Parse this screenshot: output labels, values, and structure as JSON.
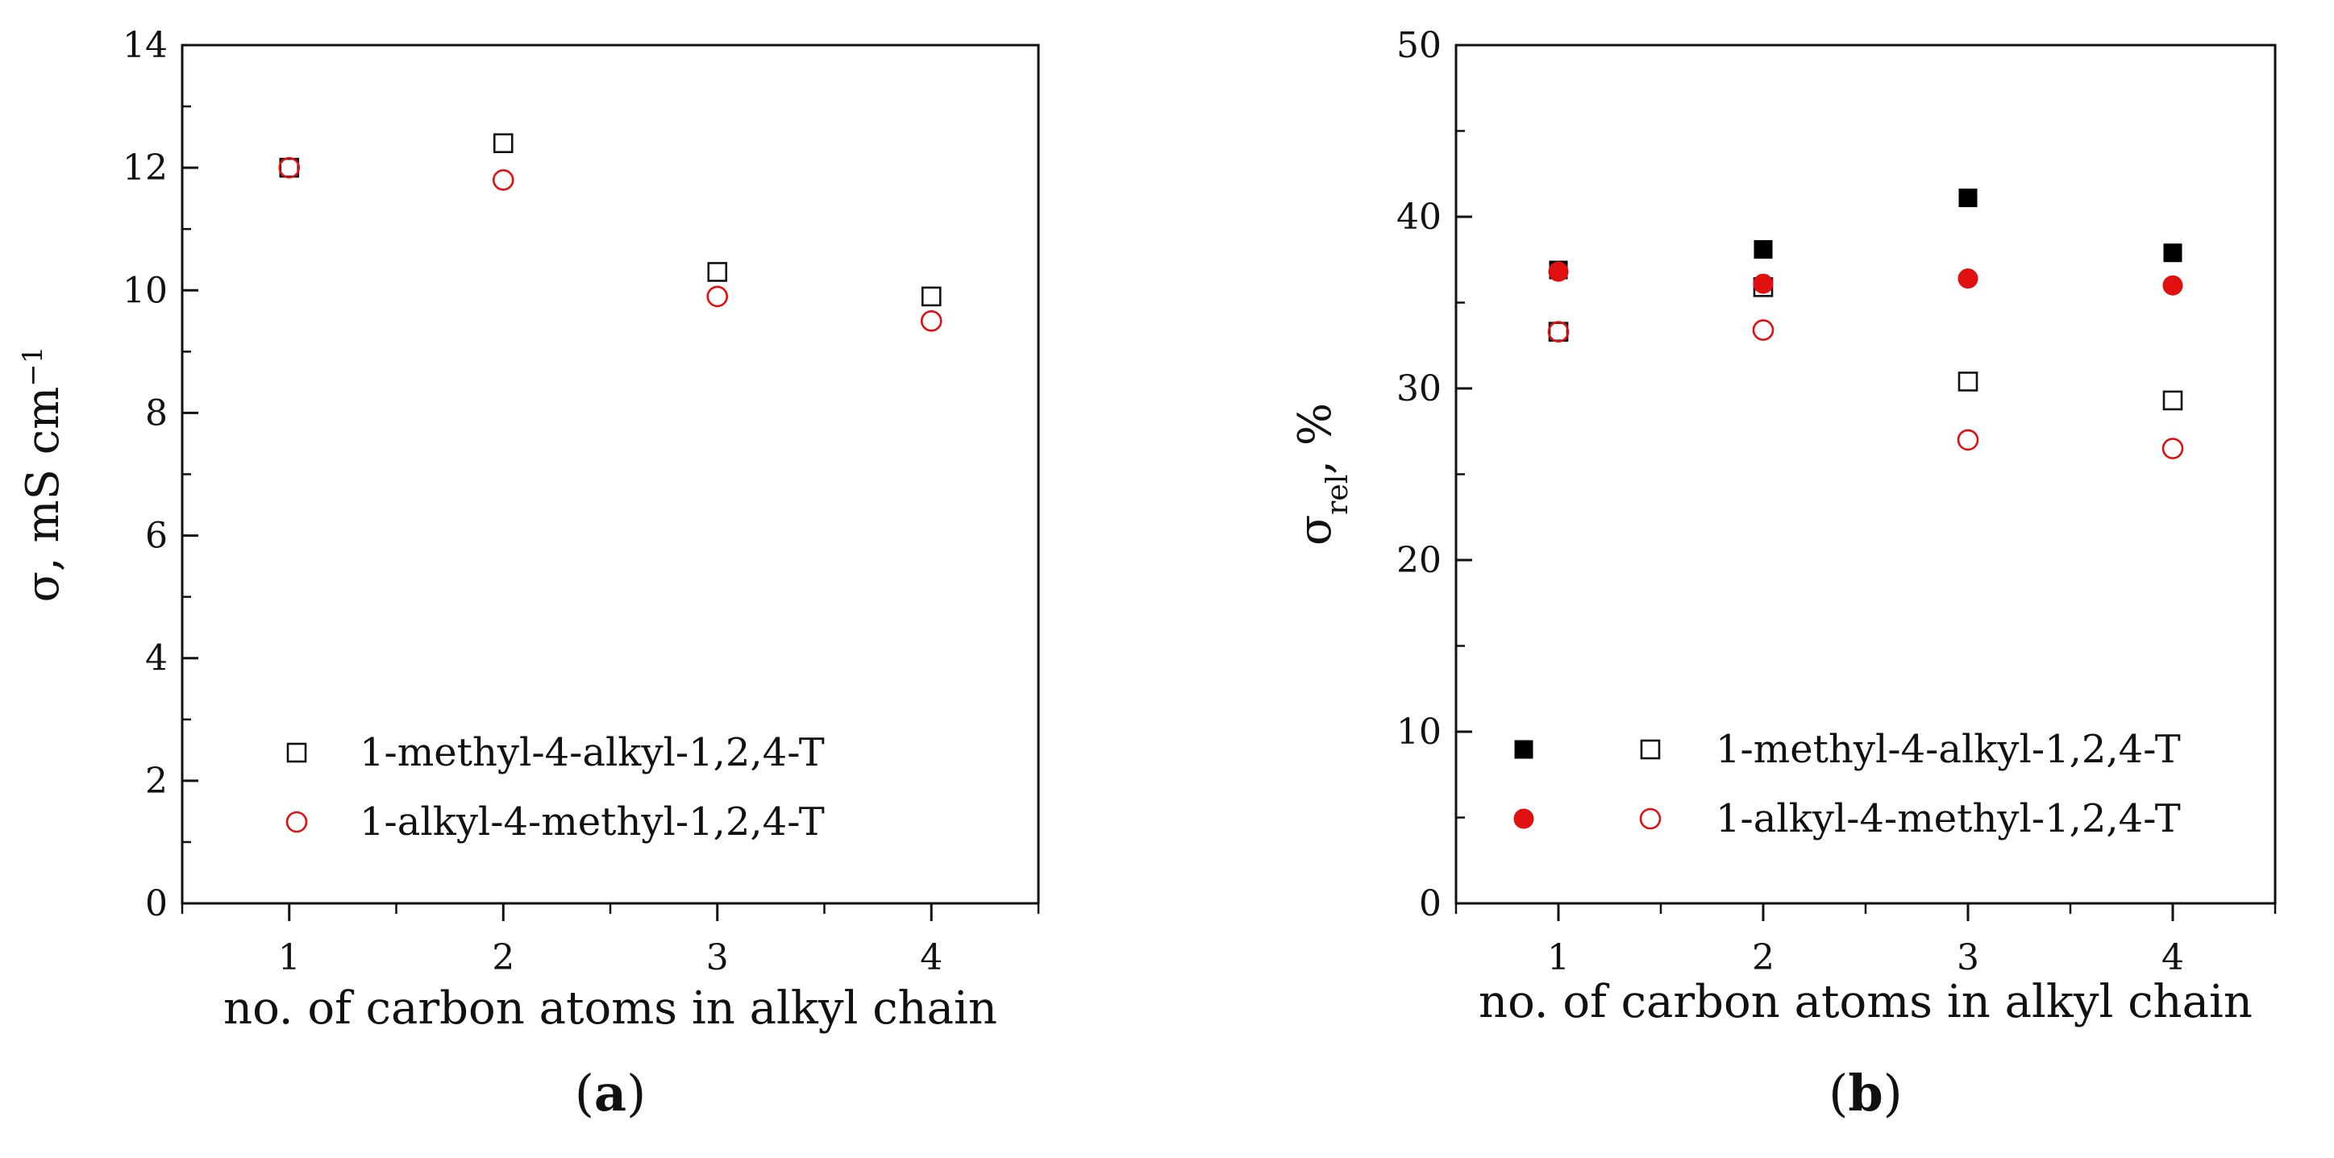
{
  "chart_data": [
    {
      "type": "scatter",
      "panel_label": "a",
      "xlabel": "no. of carbon atoms in alkyl chain",
      "ylabel": "σ, mS cm",
      "ylabel_sup": "−1",
      "xlim": [
        0.5,
        4.5
      ],
      "ylim": [
        0,
        14
      ],
      "xticks": [
        1,
        2,
        3,
        4
      ],
      "yticks": [
        0,
        2,
        4,
        6,
        8,
        10,
        12,
        14
      ],
      "grid": false,
      "legend_position": "bottom-left",
      "series": [
        {
          "name": "1-methyl-4-alkyl-1,2,4-T",
          "marker": "square-open",
          "color": "#111111",
          "x": [
            1,
            2,
            3,
            4
          ],
          "y": [
            12.0,
            12.4,
            10.3,
            9.9
          ]
        },
        {
          "name": "1-alkyl-4-methyl-1,2,4-T",
          "marker": "circle-open",
          "color": "#e01010",
          "x": [
            1,
            2,
            3,
            4
          ],
          "y": [
            12.0,
            11.8,
            9.9,
            9.5
          ]
        }
      ]
    },
    {
      "type": "scatter",
      "panel_label": "b",
      "xlabel": "no. of carbon atoms in alkyl chain",
      "ylabel": "σ",
      "ylabel_sub": "rel",
      "ylabel_suffix": ", %",
      "xlim": [
        0.5,
        4.5
      ],
      "ylim": [
        0,
        50
      ],
      "xticks": [
        1,
        2,
        3,
        4
      ],
      "yticks": [
        0,
        10,
        20,
        30,
        40,
        50
      ],
      "grid": false,
      "legend_position": "bottom-left",
      "series": [
        {
          "name": "",
          "marker": "square-filled",
          "color": "#000000",
          "x": [
            1,
            2,
            3,
            4
          ],
          "y": [
            36.9,
            38.1,
            41.1,
            37.9
          ]
        },
        {
          "name": "1-methyl-4-alkyl-1,2,4-T",
          "marker": "square-open",
          "color": "#111111",
          "x": [
            1,
            2,
            3,
            4
          ],
          "y": [
            33.3,
            35.9,
            30.4,
            29.3
          ]
        },
        {
          "name": "",
          "marker": "circle-filled",
          "color": "#e01010",
          "x": [
            1,
            2,
            3,
            4
          ],
          "y": [
            36.8,
            36.1,
            36.4,
            36.0
          ]
        },
        {
          "name": "1-alkyl-4-methyl-1,2,4-T",
          "marker": "circle-open",
          "color": "#e01010",
          "x": [
            1,
            2,
            3,
            4
          ],
          "y": [
            33.3,
            33.4,
            27.0,
            26.5
          ]
        }
      ]
    }
  ]
}
